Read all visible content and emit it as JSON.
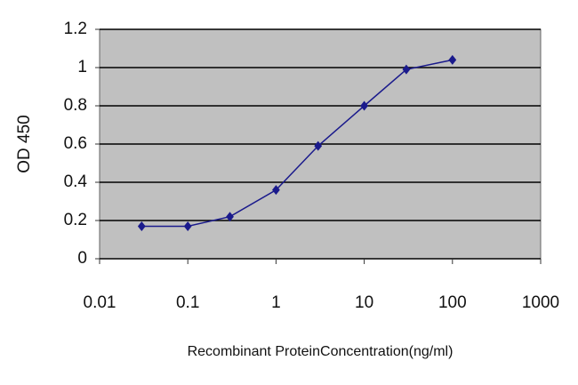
{
  "chart_data": {
    "type": "line",
    "x_label": "Recombinant ProteinConcentration(ng/ml)",
    "y_label": "OD 450",
    "x": [
      0.03,
      0.1,
      0.3,
      1,
      3,
      10,
      30,
      100
    ],
    "series": [
      {
        "name": "OD 450",
        "color": "#1a1a8c",
        "values": [
          0.17,
          0.17,
          0.22,
          0.36,
          0.59,
          0.8,
          0.99,
          1.04
        ]
      }
    ],
    "xlim": [
      0.01,
      1000
    ],
    "xticks": [
      0.01,
      0.1,
      1,
      10,
      100,
      1000
    ],
    "xscale": "log",
    "ylim": [
      0,
      1.2
    ],
    "yticks": [
      0,
      0.2,
      0.4,
      0.6,
      0.8,
      1,
      1.2
    ],
    "grid": true
  }
}
